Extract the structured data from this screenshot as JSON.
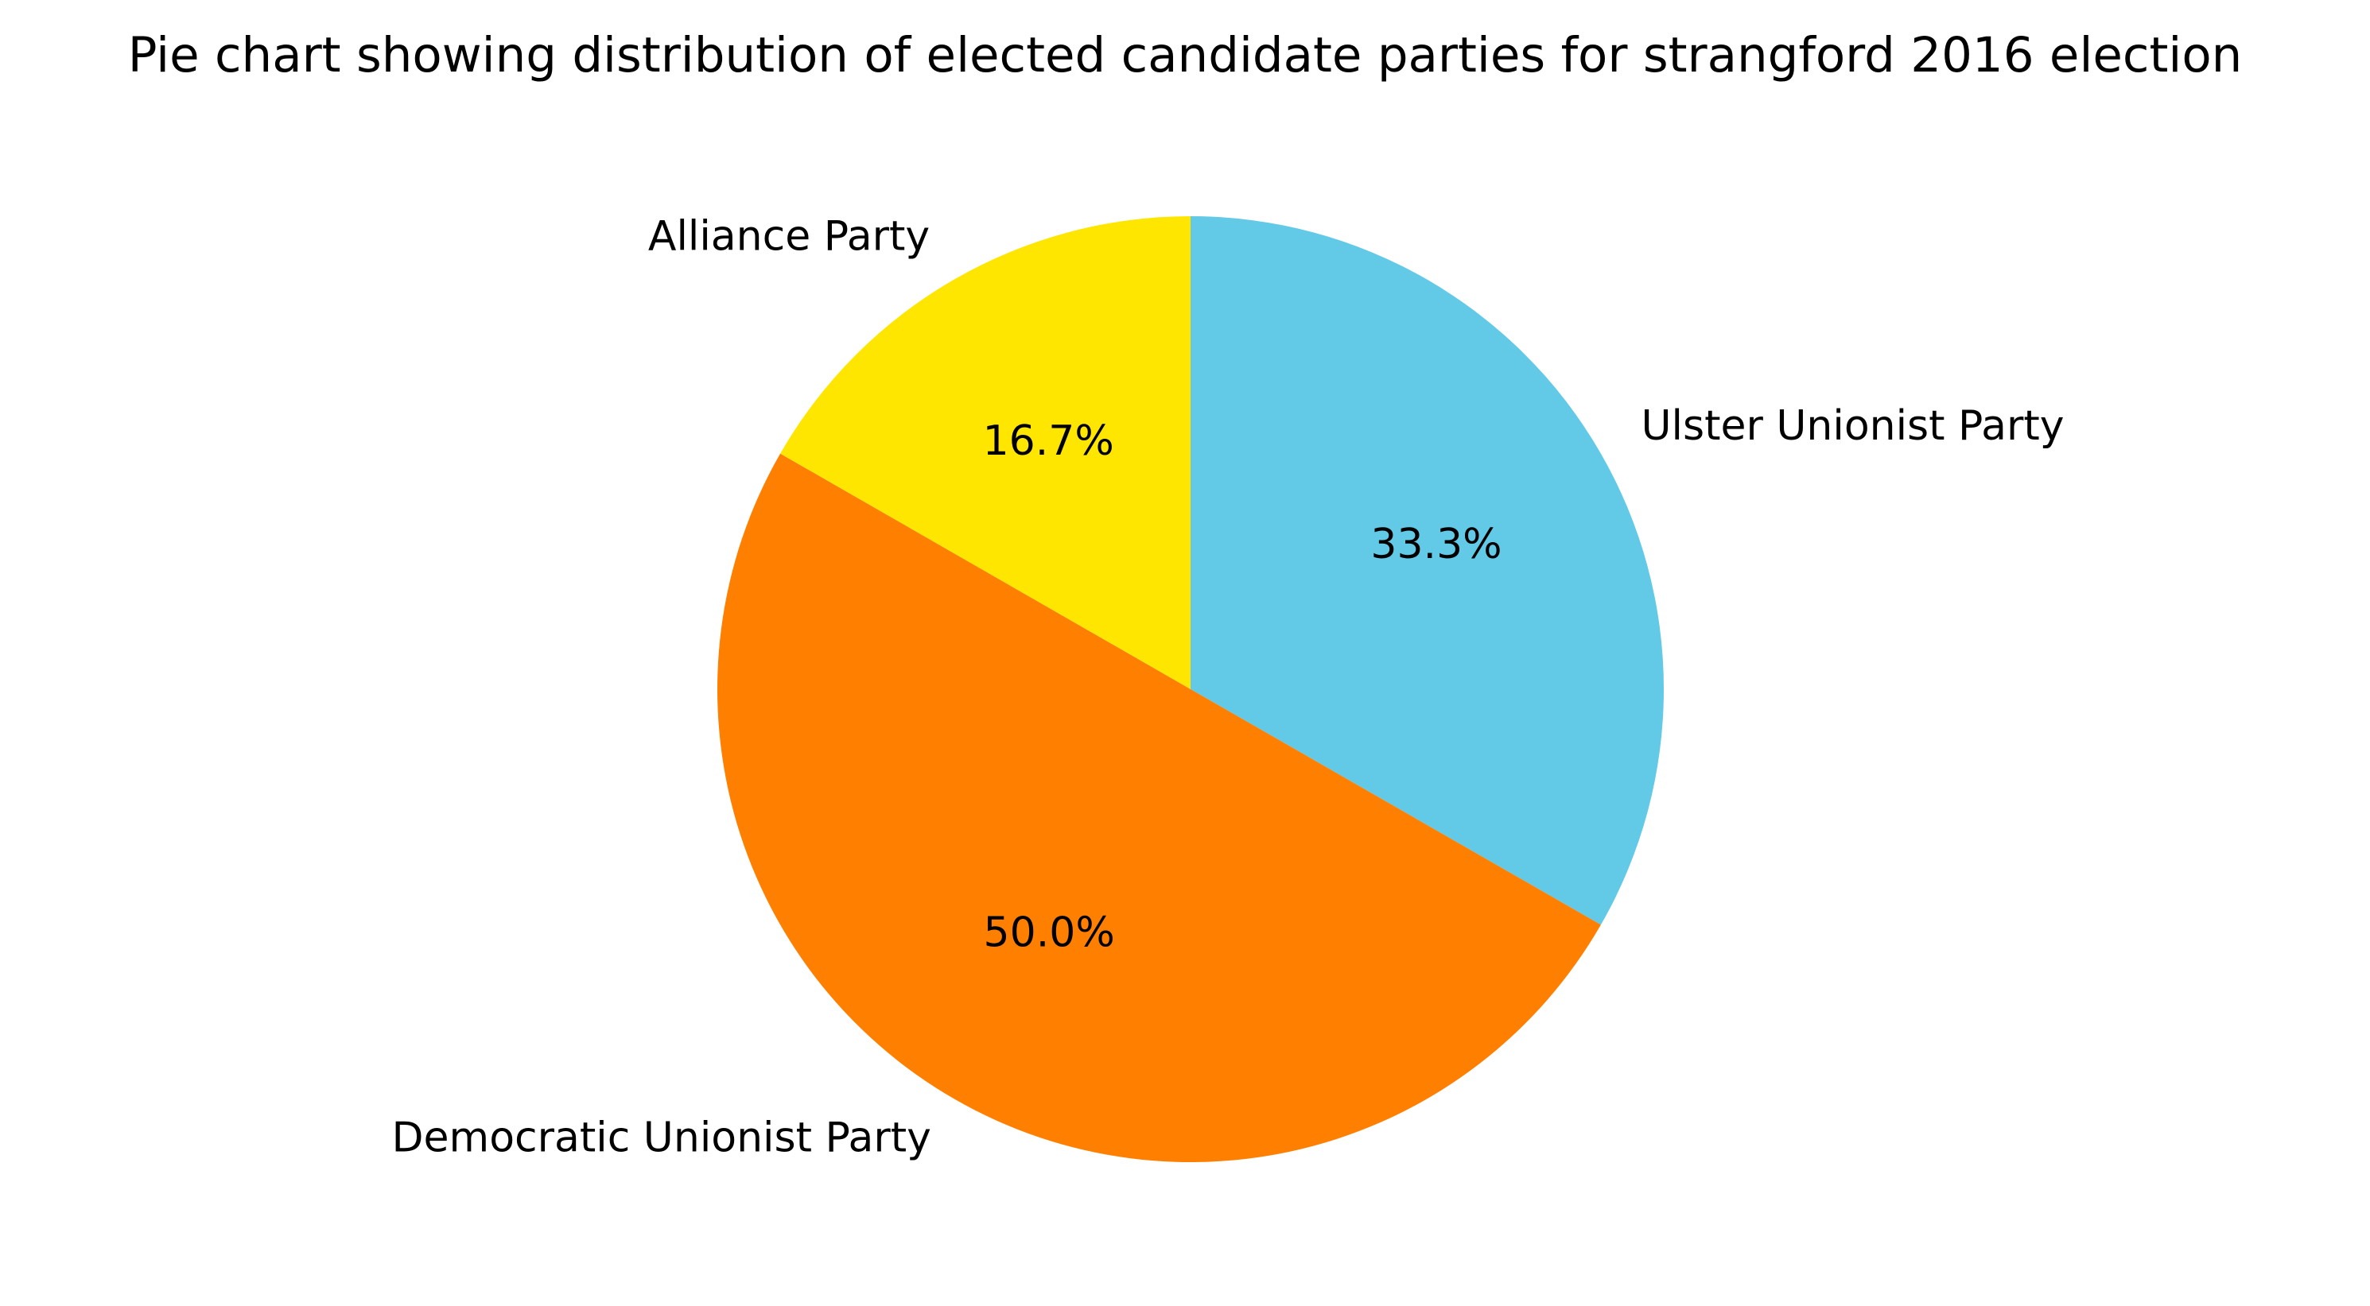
{
  "chart_data": {
    "type": "pie",
    "title": "Pie chart showing distribution of elected candidate parties for strangford 2016 election",
    "slices": [
      {
        "label": "Ulster Unionist Party",
        "value": 33.3,
        "pct_label": "33.3%",
        "color": "#62C9E6"
      },
      {
        "label": "Democratic Unionist Party",
        "value": 50.0,
        "pct_label": "50.0%",
        "color": "#FF7F00"
      },
      {
        "label": "Alliance Party",
        "value": 16.7,
        "pct_label": "16.7%",
        "color": "#FFE600"
      }
    ],
    "start_angle_deg": 90,
    "direction": "clockwise",
    "legend": "none"
  }
}
